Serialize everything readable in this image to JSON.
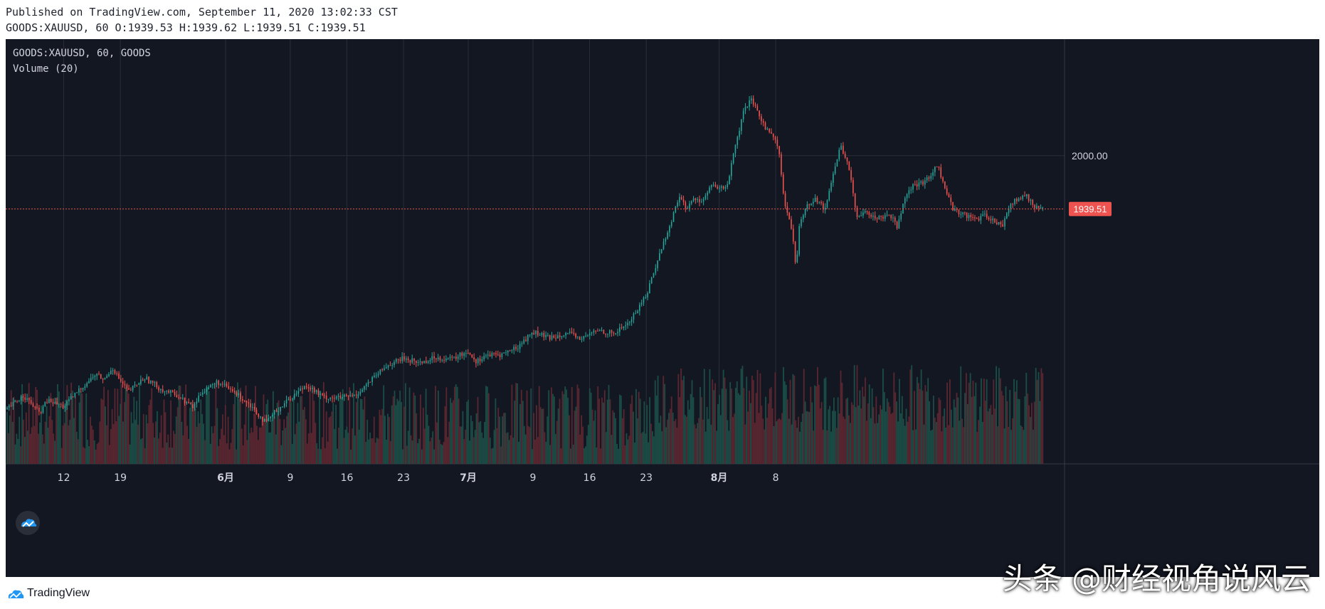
{
  "header": {
    "published": "Published on TradingView.com, September 11, 2020 13:02:33 CST",
    "ohlc": "GOODS:XAUUSD, 60 O:1939.53 H:1939.62 L:1939.51 C:1939.51"
  },
  "legend": {
    "symbol": "GOODS:XAUUSD, 60, GOODS",
    "volume": "Volume (20)"
  },
  "footer": {
    "brand": "TradingView"
  },
  "watermark": "头条 @财经视角说风云",
  "colors": {
    "background": "#131722",
    "grid": "#2a2e39",
    "up": "#26a69a",
    "down": "#ef5350",
    "volume_up": "#1b4d46",
    "volume_down": "#5a2630",
    "axis_text": "#d1d4dc",
    "price_line": "#ef5350"
  },
  "chart_data": {
    "type": "line",
    "symbol": "GOODS:XAUUSD",
    "interval": "60",
    "price_axis_ticks": [
      2000.0
    ],
    "current_price": 1939.51,
    "ohlc_last": {
      "open": 1939.53,
      "high": 1939.62,
      "low": 1939.51,
      "close": 1939.51
    },
    "y_range": [
      1680,
      2100
    ],
    "x_tick_labels": [
      {
        "label": "12",
        "day": 12,
        "bold": false
      },
      {
        "label": "19",
        "day": 19,
        "bold": false
      },
      {
        "label": "6月",
        "day": 32,
        "bold": true
      },
      {
        "label": "9",
        "day": 40,
        "bold": false
      },
      {
        "label": "16",
        "day": 47,
        "bold": false
      },
      {
        "label": "23",
        "day": 54,
        "bold": false
      },
      {
        "label": "7月",
        "day": 62,
        "bold": true
      },
      {
        "label": "9",
        "day": 70,
        "bold": false
      },
      {
        "label": "16",
        "day": 77,
        "bold": false
      },
      {
        "label": "23",
        "day": 84,
        "bold": false
      },
      {
        "label": "8月",
        "day": 93,
        "bold": true
      },
      {
        "label": "8",
        "day": 100,
        "bold": false
      }
    ],
    "x_range_days": [
      5,
      135
    ],
    "price_series": {
      "name": "XAUUSD",
      "day": [
        5,
        7,
        9,
        10,
        12,
        14,
        16,
        17,
        18,
        19,
        20,
        22,
        24,
        26,
        28,
        29,
        31,
        33,
        35,
        37,
        38,
        40,
        42,
        44,
        46,
        48,
        50,
        52,
        54,
        56,
        58,
        60,
        62,
        63,
        64,
        66,
        68,
        70,
        72,
        74,
        76,
        78,
        80,
        82,
        84,
        85,
        86,
        87,
        88,
        89,
        90,
        91,
        92,
        93,
        94,
        95,
        96,
        96.5,
        97,
        98,
        99,
        100,
        100.5,
        101,
        102,
        102.5,
        103,
        104,
        105,
        106,
        107,
        108,
        109,
        110,
        111,
        112,
        113,
        114,
        115,
        116,
        117,
        118,
        119,
        120,
        121,
        122,
        123,
        124,
        125,
        126,
        127,
        128,
        129,
        130,
        131,
        132,
        133
      ],
      "value": [
        1712,
        1728,
        1708,
        1722,
        1715,
        1735,
        1752,
        1745,
        1760,
        1744,
        1732,
        1748,
        1735,
        1728,
        1714,
        1732,
        1743,
        1732,
        1718,
        1696,
        1708,
        1725,
        1740,
        1726,
        1725,
        1728,
        1745,
        1762,
        1770,
        1765,
        1771,
        1769,
        1778,
        1766,
        1773,
        1774,
        1782,
        1800,
        1793,
        1799,
        1792,
        1802,
        1798,
        1812,
        1842,
        1870,
        1898,
        1922,
        1954,
        1940,
        1952,
        1948,
        1966,
        1962,
        1966,
        2010,
        2048,
        2058,
        2062,
        2045,
        2028,
        2020,
        1998,
        1950,
        1915,
        1870,
        1928,
        1945,
        1952,
        1938,
        1975,
        2012,
        1990,
        1928,
        1940,
        1930,
        1930,
        1935,
        1920,
        1955,
        1966,
        1968,
        1976,
        1990,
        1960,
        1938,
        1935,
        1930,
        1928,
        1932,
        1926,
        1920,
        1946,
        1950,
        1955,
        1942,
        1939.51
      ]
    },
    "volume_series": {
      "name": "Volume (20)",
      "note_scale": "relative",
      "day_start": 5,
      "day_end": 133
    }
  }
}
